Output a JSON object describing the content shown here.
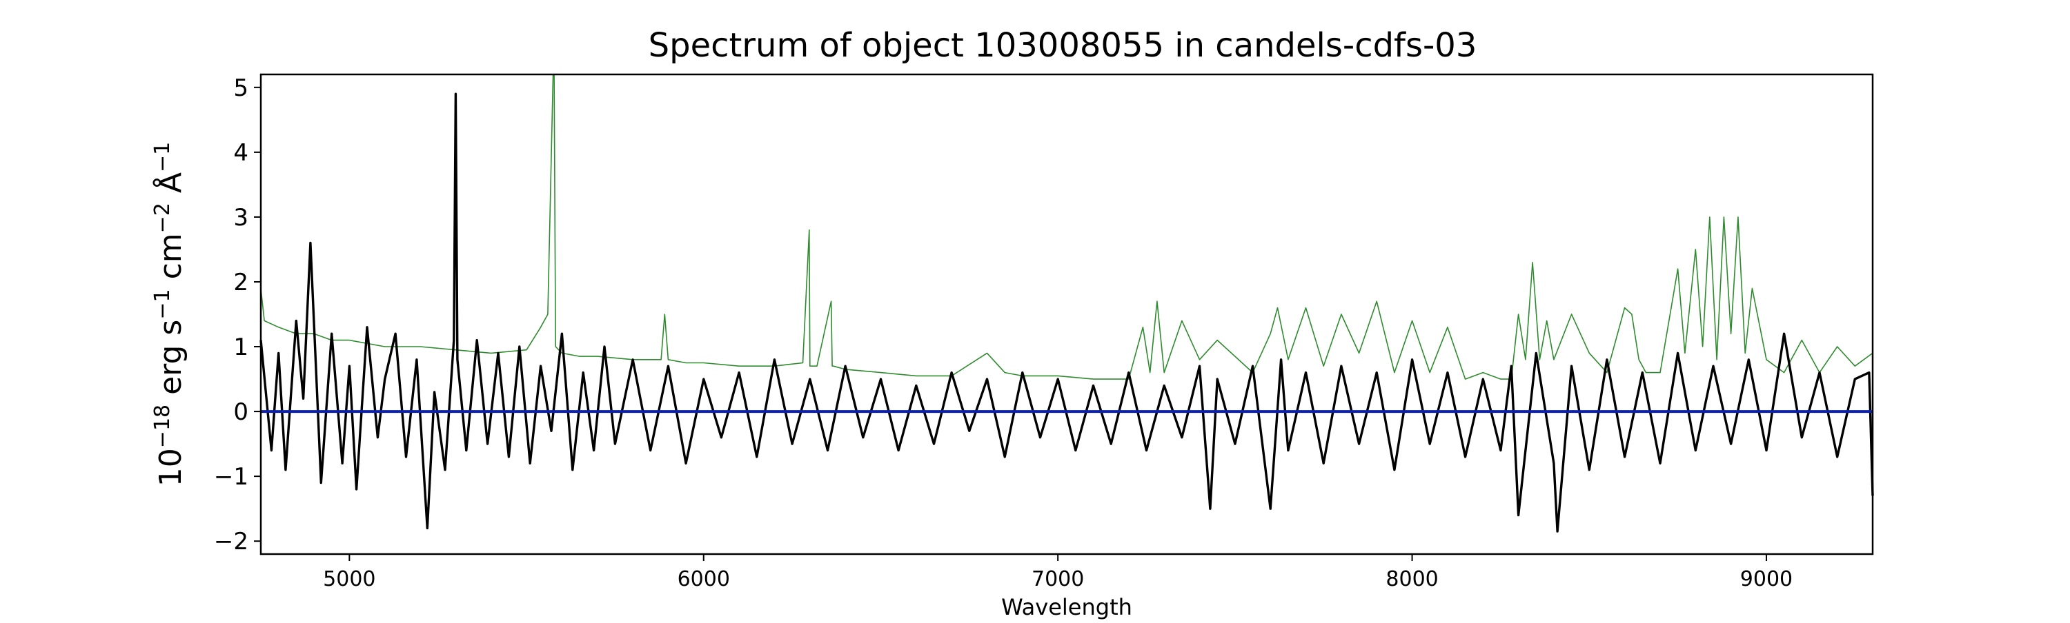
{
  "chart_data": {
    "type": "line",
    "title": "Spectrum of object 103008055 in candels-cdfs-03",
    "xlabel": "Wavelength",
    "ylabel": {
      "base": "10",
      "exp": "−18",
      "text1": " erg s",
      "exp2": "−1",
      "text2": " cm",
      "exp3": "−2",
      "text3": " Å",
      "exp4": "−1"
    },
    "xlim": [
      4750,
      9300
    ],
    "ylim": [
      -2.2,
      5.2
    ],
    "xticks": [
      5000,
      6000,
      7000,
      8000,
      9000
    ],
    "xtick_labels": [
      "5000",
      "6000",
      "7000",
      "8000",
      "9000"
    ],
    "yticks": [
      -2,
      -1,
      0,
      1,
      2,
      3,
      4,
      5
    ],
    "ytick_labels": [
      "−2",
      "−1",
      "0",
      "1",
      "2",
      "3",
      "4",
      "5"
    ],
    "grid": false,
    "series": [
      {
        "role": "flux",
        "color": "#000000",
        "x": [
          4750,
          4780,
          4800,
          4820,
          4850,
          4870,
          4890,
          4920,
          4950,
          4980,
          5000,
          5020,
          5050,
          5080,
          5100,
          5130,
          5160,
          5190,
          5220,
          5240,
          5270,
          5295,
          5300,
          5305,
          5330,
          5360,
          5390,
          5420,
          5450,
          5480,
          5510,
          5540,
          5570,
          5600,
          5630,
          5660,
          5690,
          5720,
          5750,
          5800,
          5850,
          5900,
          5950,
          6000,
          6050,
          6100,
          6150,
          6200,
          6250,
          6300,
          6350,
          6400,
          6450,
          6500,
          6550,
          6600,
          6650,
          6700,
          6750,
          6800,
          6850,
          6900,
          6950,
          7000,
          7050,
          7100,
          7150,
          7200,
          7250,
          7300,
          7350,
          7400,
          7430,
          7450,
          7500,
          7550,
          7600,
          7630,
          7650,
          7700,
          7750,
          7800,
          7850,
          7900,
          7950,
          8000,
          8050,
          8100,
          8150,
          8200,
          8250,
          8280,
          8300,
          8350,
          8400,
          8410,
          8450,
          8500,
          8550,
          8600,
          8650,
          8700,
          8750,
          8800,
          8850,
          8900,
          8950,
          9000,
          9050,
          9100,
          9150,
          9200,
          9250,
          9290,
          9300
        ],
        "y": [
          1.1,
          -0.6,
          0.9,
          -0.9,
          1.4,
          0.2,
          2.6,
          -1.1,
          1.2,
          -0.8,
          0.7,
          -1.2,
          1.3,
          -0.4,
          0.5,
          1.2,
          -0.7,
          0.8,
          -1.8,
          0.3,
          -0.9,
          1.1,
          4.9,
          0.8,
          -0.6,
          1.1,
          -0.5,
          0.9,
          -0.7,
          1.0,
          -0.8,
          0.7,
          -0.3,
          1.2,
          -0.9,
          0.6,
          -0.6,
          1.0,
          -0.5,
          0.8,
          -0.6,
          0.7,
          -0.8,
          0.5,
          -0.4,
          0.6,
          -0.7,
          0.8,
          -0.5,
          0.5,
          -0.6,
          0.7,
          -0.4,
          0.5,
          -0.6,
          0.4,
          -0.5,
          0.6,
          -0.3,
          0.5,
          -0.7,
          0.6,
          -0.4,
          0.5,
          -0.6,
          0.4,
          -0.5,
          0.6,
          -0.6,
          0.4,
          -0.4,
          0.7,
          -1.5,
          0.5,
          -0.5,
          0.7,
          -1.5,
          0.8,
          -0.6,
          0.6,
          -0.8,
          0.7,
          -0.5,
          0.6,
          -0.9,
          0.8,
          -0.5,
          0.6,
          -0.7,
          0.5,
          -0.6,
          0.7,
          -1.6,
          0.9,
          -0.8,
          -1.85,
          0.7,
          -0.9,
          0.8,
          -0.7,
          0.6,
          -0.8,
          0.9,
          -0.6,
          0.7,
          -0.5,
          0.8,
          -0.6,
          1.2,
          -0.4,
          0.6,
          -0.7,
          0.5,
          0.6,
          -1.3
        ]
      },
      {
        "role": "noise",
        "color": "#2e8b2e",
        "x": [
          4750,
          4760,
          4800,
          4850,
          4900,
          4950,
          5000,
          5100,
          5200,
          5300,
          5400,
          5500,
          5540,
          5560,
          5575,
          5578,
          5582,
          5600,
          5650,
          5700,
          5800,
          5880,
          5890,
          5900,
          5950,
          6000,
          6100,
          6200,
          6280,
          6298,
          6300,
          6302,
          6320,
          6360,
          6363,
          6366,
          6400,
          6500,
          6600,
          6700,
          6800,
          6850,
          6900,
          7000,
          7100,
          7200,
          7240,
          7260,
          7280,
          7300,
          7350,
          7400,
          7450,
          7550,
          7600,
          7620,
          7650,
          7700,
          7750,
          7800,
          7850,
          7900,
          7950,
          8000,
          8050,
          8100,
          8150,
          8200,
          8250,
          8280,
          8300,
          8320,
          8340,
          8360,
          8380,
          8400,
          8450,
          8500,
          8550,
          8600,
          8620,
          8640,
          8660,
          8700,
          8750,
          8770,
          8800,
          8820,
          8840,
          8860,
          8880,
          8900,
          8920,
          8940,
          8960,
          9000,
          9050,
          9100,
          9150,
          9200,
          9250,
          9300
        ],
        "y": [
          1.9,
          1.4,
          1.3,
          1.2,
          1.2,
          1.1,
          1.1,
          1.0,
          1.0,
          0.95,
          0.9,
          0.95,
          1.3,
          1.5,
          5.2,
          5.2,
          1.0,
          0.9,
          0.85,
          0.85,
          0.8,
          0.8,
          1.5,
          0.8,
          0.75,
          0.75,
          0.7,
          0.7,
          0.75,
          2.8,
          0.7,
          0.7,
          0.7,
          1.7,
          0.7,
          0.7,
          0.65,
          0.6,
          0.55,
          0.55,
          0.9,
          0.6,
          0.55,
          0.55,
          0.5,
          0.5,
          1.3,
          0.6,
          1.7,
          0.6,
          1.4,
          0.8,
          1.1,
          0.6,
          1.2,
          1.6,
          0.8,
          1.6,
          0.7,
          1.5,
          0.9,
          1.7,
          0.6,
          1.4,
          0.6,
          1.3,
          0.5,
          0.6,
          0.5,
          0.5,
          1.5,
          0.8,
          2.3,
          0.8,
          1.4,
          0.8,
          1.5,
          0.9,
          0.6,
          1.6,
          1.5,
          0.8,
          0.6,
          0.6,
          2.2,
          0.9,
          2.5,
          1.0,
          3.0,
          0.8,
          3.0,
          1.2,
          3.0,
          0.9,
          1.9,
          0.8,
          0.6,
          1.1,
          0.6,
          1.0,
          0.7,
          0.9
        ]
      },
      {
        "role": "zero",
        "color": "#0a1fb5",
        "x": [
          4750,
          9300
        ],
        "y": [
          0,
          0
        ]
      }
    ]
  }
}
